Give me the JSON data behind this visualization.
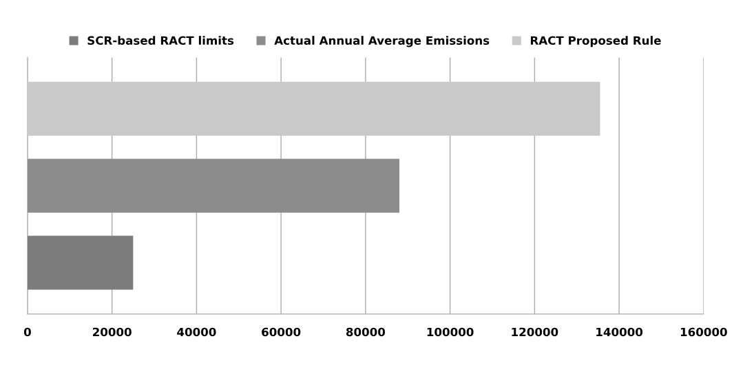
{
  "chart_data": {
    "type": "bar",
    "orientation": "horizontal",
    "categories": [
      null
    ],
    "series": [
      {
        "name": "SCR-based RACT limits",
        "color": "#7c7c7c",
        "values": [
          25000
        ]
      },
      {
        "name": "Actual Annual Average Emissions",
        "color": "#8c8c8c",
        "values": [
          88000
        ]
      },
      {
        "name": "RACT Proposed Rule",
        "color": "#c9c9c9",
        "values": [
          135500
        ]
      }
    ],
    "xlim": [
      0,
      160000
    ],
    "xticks": [
      0,
      20000,
      40000,
      60000,
      80000,
      100000,
      120000,
      140000,
      160000
    ],
    "grid": "x",
    "legend": "top"
  }
}
